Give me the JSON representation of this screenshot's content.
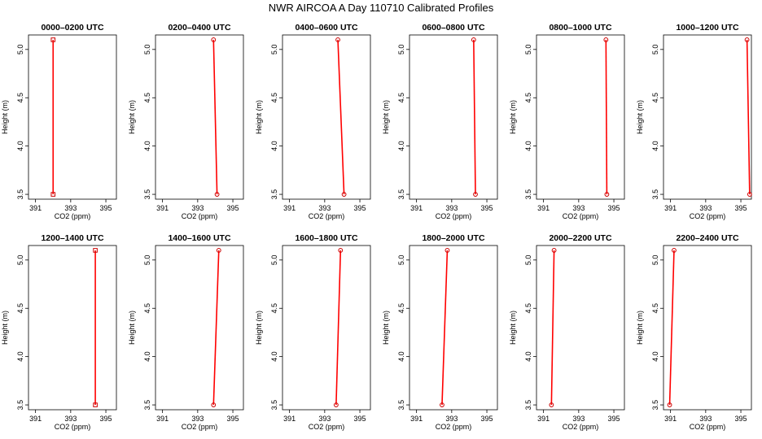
{
  "figure": {
    "title": "NWR AIRCOA A  Day 110710  Calibrated Profiles",
    "line_color": "#ff0000",
    "point_color": "#cc0000"
  },
  "chart_data": [
    {
      "type": "line",
      "title": "0000–0200 UTC",
      "xlabel": "CO2 (ppm)",
      "ylabel": "Height (m)",
      "xlim": [
        390.6,
        395.6
      ],
      "ylim": [
        3.45,
        5.15
      ],
      "xticks": [
        391,
        393,
        395
      ],
      "yticks": [
        3.5,
        4.0,
        4.5,
        5.0
      ],
      "x": [
        392.0,
        392.0
      ],
      "y": [
        3.5,
        5.1
      ]
    },
    {
      "type": "line",
      "title": "0200–0400 UTC",
      "xlabel": "CO2 (ppm)",
      "ylabel": "Height (m)",
      "xlim": [
        390.6,
        395.6
      ],
      "ylim": [
        3.45,
        5.15
      ],
      "xticks": [
        391,
        393,
        395
      ],
      "yticks": [
        3.5,
        4.0,
        4.5,
        5.0
      ],
      "x": [
        394.1,
        393.9
      ],
      "y": [
        3.5,
        5.1
      ]
    },
    {
      "type": "line",
      "title": "0400–0600 UTC",
      "xlabel": "CO2 (ppm)",
      "ylabel": "Height (m)",
      "xlim": [
        390.6,
        395.6
      ],
      "ylim": [
        3.45,
        5.15
      ],
      "xticks": [
        391,
        393,
        395
      ],
      "yticks": [
        3.5,
        4.0,
        4.5,
        5.0
      ],
      "x": [
        394.1,
        393.75
      ],
      "y": [
        3.5,
        5.1
      ]
    },
    {
      "type": "line",
      "title": "0600–0800 UTC",
      "xlabel": "CO2 (ppm)",
      "ylabel": "Height (m)",
      "xlim": [
        390.6,
        395.6
      ],
      "ylim": [
        3.45,
        5.15
      ],
      "xticks": [
        391,
        393,
        395
      ],
      "yticks": [
        3.5,
        4.0,
        4.5,
        5.0
      ],
      "x": [
        394.35,
        394.25
      ],
      "y": [
        3.5,
        5.1
      ]
    },
    {
      "type": "line",
      "title": "0800–1000 UTC",
      "xlabel": "CO2 (ppm)",
      "ylabel": "Height (m)",
      "xlim": [
        390.6,
        395.6
      ],
      "ylim": [
        3.45,
        5.15
      ],
      "xticks": [
        391,
        393,
        395
      ],
      "yticks": [
        3.5,
        4.0,
        4.5,
        5.0
      ],
      "x": [
        394.6,
        394.55
      ],
      "y": [
        3.5,
        5.1
      ]
    },
    {
      "type": "line",
      "title": "1000–1200 UTC",
      "xlabel": "CO2 (ppm)",
      "ylabel": "Height (m)",
      "xlim": [
        390.6,
        395.6
      ],
      "ylim": [
        3.45,
        5.15
      ],
      "xticks": [
        391,
        393,
        395
      ],
      "yticks": [
        3.5,
        4.0,
        4.5,
        5.0
      ],
      "x": [
        395.5,
        395.35
      ],
      "y": [
        3.5,
        5.1
      ]
    },
    {
      "type": "line",
      "title": "1200–1400 UTC",
      "xlabel": "CO2 (ppm)",
      "ylabel": "Height (m)",
      "xlim": [
        390.6,
        395.6
      ],
      "ylim": [
        3.45,
        5.15
      ],
      "xticks": [
        391,
        393,
        395
      ],
      "yticks": [
        3.5,
        4.0,
        4.5,
        5.0
      ],
      "x": [
        394.4,
        394.4
      ],
      "y": [
        3.5,
        5.1
      ]
    },
    {
      "type": "line",
      "title": "1400–1600 UTC",
      "xlabel": "CO2 (ppm)",
      "ylabel": "Height (m)",
      "xlim": [
        390.6,
        395.6
      ],
      "ylim": [
        3.45,
        5.15
      ],
      "xticks": [
        391,
        393,
        395
      ],
      "yticks": [
        3.5,
        4.0,
        4.5,
        5.0
      ],
      "x": [
        393.9,
        394.2
      ],
      "y": [
        3.5,
        5.1
      ]
    },
    {
      "type": "line",
      "title": "1600–1800 UTC",
      "xlabel": "CO2 (ppm)",
      "ylabel": "Height (m)",
      "xlim": [
        390.6,
        395.6
      ],
      "ylim": [
        3.45,
        5.15
      ],
      "xticks": [
        391,
        393,
        395
      ],
      "yticks": [
        3.5,
        4.0,
        4.5,
        5.0
      ],
      "x": [
        393.65,
        393.9
      ],
      "y": [
        3.5,
        5.1
      ]
    },
    {
      "type": "line",
      "title": "1800–2000 UTC",
      "xlabel": "CO2 (ppm)",
      "ylabel": "Height (m)",
      "xlim": [
        390.6,
        395.6
      ],
      "ylim": [
        3.45,
        5.15
      ],
      "xticks": [
        391,
        393,
        395
      ],
      "yticks": [
        3.5,
        4.0,
        4.5,
        5.0
      ],
      "x": [
        392.45,
        392.75
      ],
      "y": [
        3.5,
        5.1
      ]
    },
    {
      "type": "line",
      "title": "2000–2200 UTC",
      "xlabel": "CO2 (ppm)",
      "ylabel": "Height (m)",
      "xlim": [
        390.6,
        395.6
      ],
      "ylim": [
        3.45,
        5.15
      ],
      "xticks": [
        391,
        393,
        395
      ],
      "yticks": [
        3.5,
        4.0,
        4.5,
        5.0
      ],
      "x": [
        391.45,
        391.6
      ],
      "y": [
        3.5,
        5.1
      ]
    },
    {
      "type": "line",
      "title": "2200–2400 UTC",
      "xlabel": "CO2 (ppm)",
      "ylabel": "Height (m)",
      "xlim": [
        390.6,
        395.6
      ],
      "ylim": [
        3.45,
        5.15
      ],
      "xticks": [
        391,
        393,
        395
      ],
      "yticks": [
        3.5,
        4.0,
        4.5,
        5.0
      ],
      "x": [
        390.95,
        391.2
      ],
      "y": [
        3.5,
        5.1
      ]
    }
  ]
}
